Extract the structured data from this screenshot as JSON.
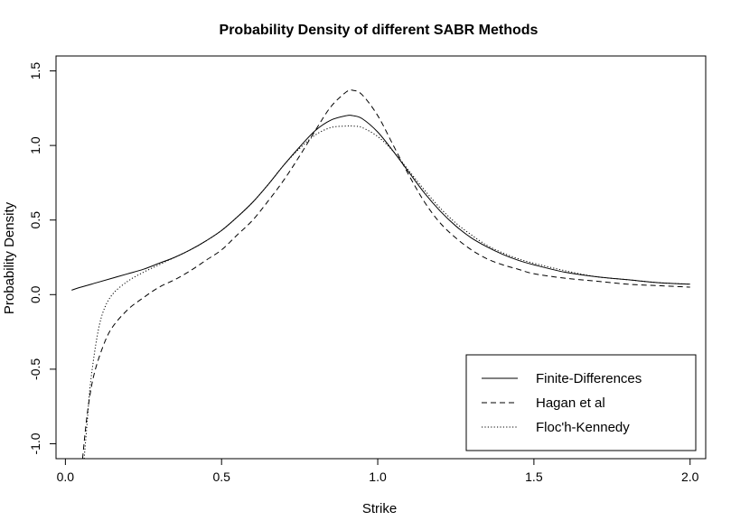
{
  "chart_data": {
    "type": "line",
    "title": "Probability Density of different SABR Methods",
    "xlabel": "Strike",
    "ylabel": "Probability Density",
    "xlim": [
      -0.03,
      2.05
    ],
    "ylim": [
      -1.1,
      1.6
    ],
    "xticks": [
      "0.0",
      "0.5",
      "1.0",
      "1.5",
      "2.0"
    ],
    "yticks": [
      "-1.0",
      "-0.5",
      "0.0",
      "0.5",
      "1.0",
      "1.5"
    ],
    "legend_position": "bottom-right",
    "grid": false,
    "series": [
      {
        "name": "Finite-Differences",
        "style": "solid",
        "x": [
          0.02,
          0.05,
          0.1,
          0.15,
          0.2,
          0.25,
          0.3,
          0.35,
          0.4,
          0.45,
          0.5,
          0.55,
          0.6,
          0.65,
          0.7,
          0.75,
          0.8,
          0.85,
          0.9,
          0.92,
          0.95,
          1.0,
          1.05,
          1.1,
          1.15,
          1.2,
          1.25,
          1.3,
          1.35,
          1.4,
          1.45,
          1.5,
          1.6,
          1.7,
          1.8,
          1.9,
          2.0
        ],
        "y": [
          0.03,
          0.05,
          0.08,
          0.11,
          0.14,
          0.17,
          0.21,
          0.25,
          0.3,
          0.36,
          0.43,
          0.52,
          0.62,
          0.74,
          0.87,
          0.99,
          1.1,
          1.17,
          1.2,
          1.2,
          1.18,
          1.09,
          0.96,
          0.82,
          0.68,
          0.56,
          0.46,
          0.38,
          0.32,
          0.27,
          0.23,
          0.2,
          0.15,
          0.12,
          0.1,
          0.08,
          0.07
        ]
      },
      {
        "name": "Hagan et al",
        "style": "dashed",
        "x": [
          0.055,
          0.07,
          0.09,
          0.12,
          0.15,
          0.2,
          0.25,
          0.3,
          0.35,
          0.4,
          0.45,
          0.5,
          0.55,
          0.6,
          0.65,
          0.7,
          0.75,
          0.8,
          0.85,
          0.9,
          0.92,
          0.95,
          1.0,
          1.05,
          1.1,
          1.15,
          1.2,
          1.25,
          1.3,
          1.35,
          1.4,
          1.45,
          1.5,
          1.6,
          1.7,
          1.8,
          1.9,
          2.0
        ],
        "y": [
          -1.1,
          -0.8,
          -0.55,
          -0.35,
          -0.22,
          -0.1,
          -0.02,
          0.05,
          0.1,
          0.16,
          0.23,
          0.3,
          0.4,
          0.5,
          0.63,
          0.77,
          0.93,
          1.1,
          1.26,
          1.36,
          1.37,
          1.34,
          1.2,
          1.0,
          0.8,
          0.62,
          0.48,
          0.38,
          0.3,
          0.24,
          0.2,
          0.17,
          0.14,
          0.11,
          0.09,
          0.07,
          0.06,
          0.05
        ]
      },
      {
        "name": "Floc'h-Kennedy",
        "style": "dotted",
        "x": [
          0.06,
          0.07,
          0.08,
          0.1,
          0.12,
          0.15,
          0.2,
          0.25,
          0.3,
          0.35,
          0.4,
          0.45,
          0.5,
          0.55,
          0.6,
          0.65,
          0.7,
          0.75,
          0.8,
          0.85,
          0.9,
          0.92,
          0.95,
          1.0,
          1.05,
          1.1,
          1.15,
          1.2,
          1.25,
          1.3,
          1.35,
          1.4,
          1.45,
          1.5,
          1.6,
          1.7,
          1.8,
          1.9,
          2.0
        ],
        "y": [
          -1.1,
          -0.85,
          -0.6,
          -0.3,
          -0.12,
          0.0,
          0.09,
          0.15,
          0.2,
          0.25,
          0.3,
          0.36,
          0.43,
          0.52,
          0.62,
          0.74,
          0.87,
          0.98,
          1.07,
          1.12,
          1.13,
          1.13,
          1.12,
          1.06,
          0.96,
          0.83,
          0.7,
          0.58,
          0.48,
          0.4,
          0.33,
          0.28,
          0.24,
          0.21,
          0.16,
          0.12,
          0.1,
          0.08,
          0.07
        ]
      }
    ]
  }
}
